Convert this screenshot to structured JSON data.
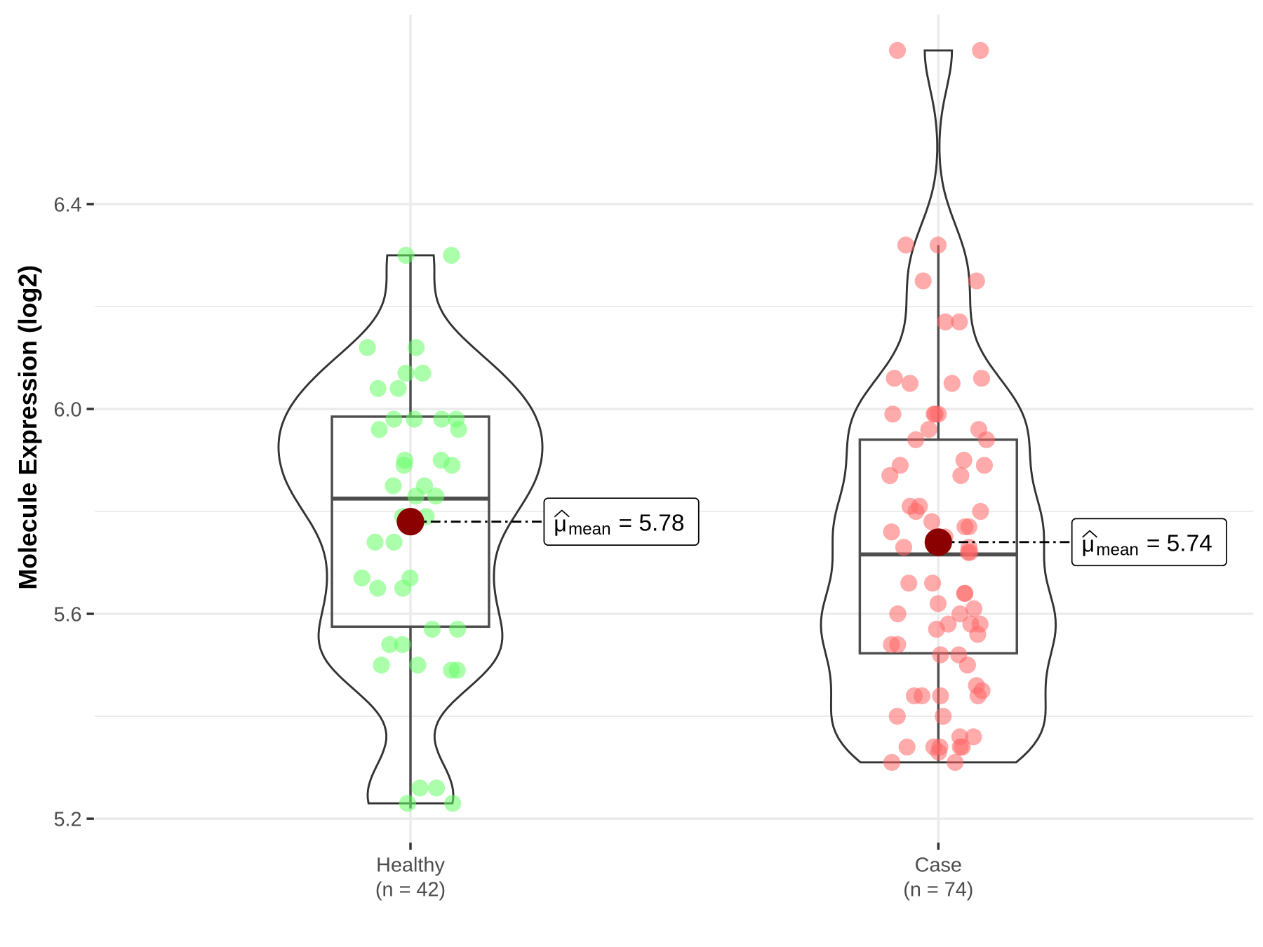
{
  "chart_data": {
    "type": "violin",
    "title": "",
    "xlabel": "",
    "ylabel": "Molecule Expression (log2)",
    "ylim": [
      5.155,
      6.77
    ],
    "yticks": [
      "5.2",
      "5.6",
      "6.0",
      "6.4"
    ],
    "ytick_values": [
      5.2,
      5.6,
      6.0,
      6.4
    ],
    "minor_grid": [
      5.4,
      5.8,
      6.2
    ],
    "grid": true,
    "groups": [
      {
        "name": "Healthy",
        "n_label": "(n = 42)",
        "color": "#66ff66",
        "mean": 5.78,
        "mean_label_prefix": "mean",
        "mean_label_value": "= 5.78",
        "box": {
          "min": 5.22,
          "q1": 5.575,
          "median": 5.825,
          "q3": 5.985,
          "max": 6.3
        },
        "values": [
          6.3,
          6.12,
          6.12,
          6.04,
          6.07,
          6.07,
          6.04,
          5.98,
          5.98,
          5.98,
          5.98,
          5.96,
          5.96,
          5.9,
          5.9,
          5.89,
          5.89,
          5.85,
          5.85,
          5.83,
          5.83,
          5.79,
          5.79,
          5.74,
          5.74,
          5.67,
          5.67,
          5.65,
          5.65,
          5.57,
          5.57,
          5.54,
          5.54,
          5.5,
          5.5,
          5.49,
          5.49,
          5.23,
          5.26,
          5.26,
          5.23,
          6.3
        ]
      },
      {
        "name": "Case",
        "n_label": "(n = 74)",
        "color": "#ff6666",
        "mean": 5.74,
        "mean_label_prefix": "mean",
        "mean_label_value": "= 5.74",
        "box": {
          "min": 5.31,
          "q1": 5.523,
          "median": 5.716,
          "q3": 5.94,
          "max": 6.32
        },
        "values": [
          6.7,
          6.7,
          6.32,
          6.32,
          6.25,
          6.25,
          6.17,
          6.17,
          6.06,
          6.05,
          6.05,
          6.06,
          5.99,
          5.99,
          5.99,
          5.99,
          5.96,
          5.96,
          5.94,
          5.94,
          5.9,
          5.89,
          5.89,
          5.87,
          5.87,
          5.81,
          5.81,
          5.8,
          5.8,
          5.78,
          5.77,
          5.77,
          5.76,
          5.75,
          5.73,
          5.73,
          5.72,
          5.72,
          5.66,
          5.66,
          5.64,
          5.64,
          5.61,
          5.6,
          5.6,
          5.58,
          5.58,
          5.58,
          5.57,
          5.56,
          5.54,
          5.54,
          5.52,
          5.52,
          5.46,
          5.45,
          5.44,
          5.44,
          5.44,
          5.44,
          5.4,
          5.4,
          5.34,
          5.34,
          5.34,
          5.34,
          5.34,
          5.33,
          5.31,
          5.31,
          5.36,
          5.36,
          5.5,
          5.62
        ]
      }
    ],
    "mean_color": "#8b0000"
  }
}
